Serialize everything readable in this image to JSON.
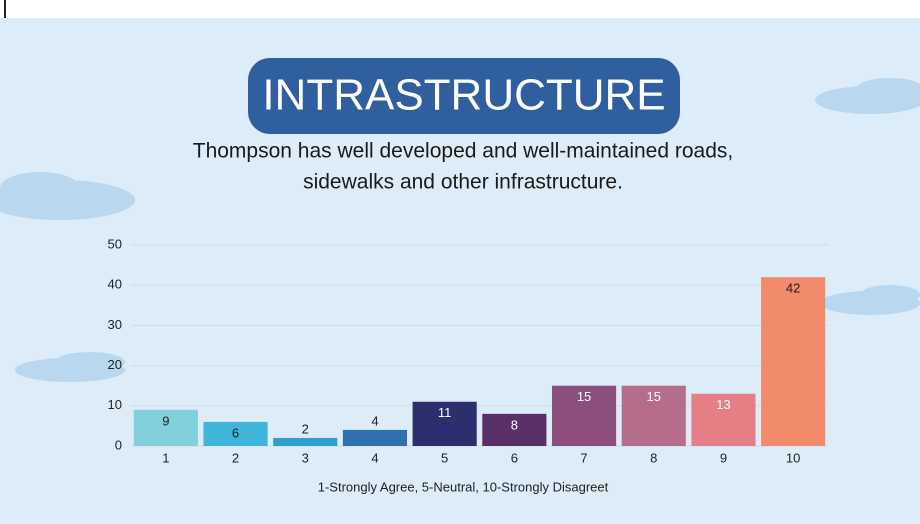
{
  "chart_data": {
    "type": "bar",
    "title": "INTRASTRUCTURE",
    "subtitle": [
      "Thompson has well developed and well-maintained roads,",
      "sidewalks and other infrastructure."
    ],
    "x_label": "1-Strongly Agree, 5-Neutral, 10-Strongly Disagreet",
    "categories": [
      "1",
      "2",
      "3",
      "4",
      "5",
      "6",
      "7",
      "8",
      "9",
      "10"
    ],
    "values": [
      9,
      6,
      2,
      4,
      11,
      8,
      15,
      15,
      13,
      42
    ],
    "colors": [
      "#82d0dc",
      "#3fb6d9",
      "#2f9fcb",
      "#2f71ae",
      "#2c2f6d",
      "#5a2f67",
      "#8b4e7d",
      "#b66d8c",
      "#e47f86",
      "#f28b6b"
    ],
    "label_colors": [
      "#222",
      "#222",
      "#222",
      "#222",
      "#fff",
      "#fff",
      "#fff",
      "#fff",
      "#fff",
      "#222"
    ],
    "ylim": [
      0,
      50
    ],
    "yticks": [
      0,
      10,
      20,
      30,
      40,
      50
    ],
    "grid": true
  }
}
